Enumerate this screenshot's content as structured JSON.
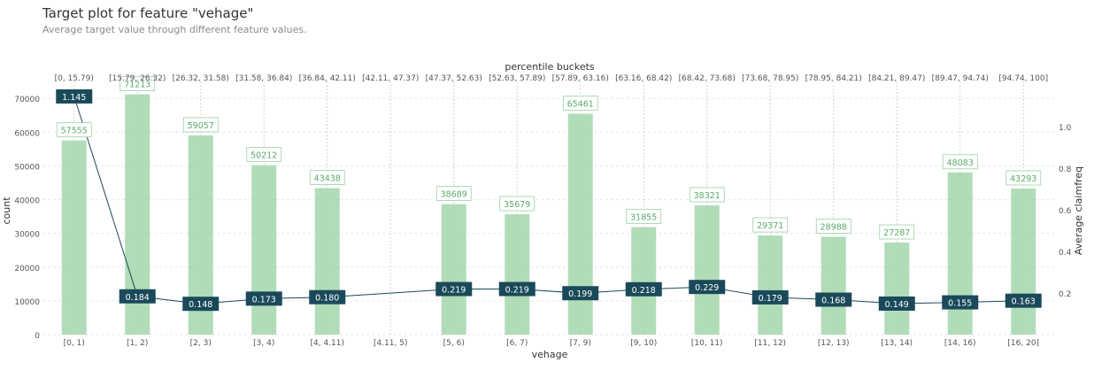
{
  "chart_data": {
    "type": "bar",
    "title": "Target plot for feature \"vehage\"",
    "subtitle": "Average target value through different feature values.",
    "xlabel": "vehage",
    "ylabel": "count",
    "y2label": "Average claimfreq",
    "top_axis_label": "percentile buckets",
    "categories": [
      "[0, 1)",
      "[1, 2)",
      "[2, 3)",
      "[3, 4)",
      "[4, 4.11)",
      "[4.11, 5)",
      "[5, 6)",
      "[6, 7)",
      "[7, 9)",
      "[9, 10)",
      "[10, 11)",
      "[11, 12)",
      "[12, 13)",
      "[13, 14)",
      "[14, 16)",
      "[16, 20]"
    ],
    "percentile_buckets": [
      "[0, 15.79)",
      "[15.79, 26.32)",
      "[26.32, 31.58)",
      "[31.58, 36.84)",
      "[36.84, 42.11)",
      "[42.11, 47.37)",
      "[47.37, 52.63)",
      "[52.63, 57.89)",
      "[57.89, 63.16)",
      "[63.16, 68.42)",
      "[68.42, 73.68)",
      "[73.68, 78.95)",
      "[78.95, 84.21)",
      "[84.21, 89.47)",
      "[89.47, 94.74)",
      "[94.74, 100]"
    ],
    "series": [
      {
        "type": "bar",
        "axis": "left",
        "color": "#a8d8b0",
        "label_color": "#5aaa6a",
        "values": [
          57555,
          71213,
          59057,
          50212,
          43438,
          null,
          38689,
          35679,
          65461,
          31855,
          38321,
          29371,
          28988,
          27287,
          48083,
          43293
        ],
        "labels": [
          "57555",
          "71213",
          "59057",
          "50212",
          "43438",
          "",
          "38689",
          "35679",
          "65461",
          "31855",
          "38321",
          "29371",
          "28988",
          "27287",
          "48083",
          "43293"
        ]
      },
      {
        "type": "line",
        "axis": "right",
        "color": "#1a4a5a",
        "values": [
          1.145,
          0.184,
          0.148,
          0.173,
          0.18,
          null,
          0.219,
          0.219,
          0.199,
          0.218,
          0.229,
          0.179,
          0.168,
          0.149,
          0.155,
          0.163
        ],
        "labels": [
          "1.145",
          "0.184",
          "0.148",
          "0.173",
          "0.180",
          "",
          "0.219",
          "0.219",
          "0.199",
          "0.218",
          "0.229",
          "0.179",
          "0.168",
          "0.149",
          "0.155",
          "0.163"
        ]
      }
    ],
    "ylim": [
      0,
      74000
    ],
    "y2lim": [
      0,
      1.2
    ],
    "yticks": [
      0,
      10000,
      20000,
      30000,
      40000,
      50000,
      60000,
      70000
    ],
    "yticklabels": [
      "0",
      "10000",
      "20000",
      "30000",
      "40000",
      "50000",
      "60000",
      "70000"
    ],
    "y2ticks": [
      0.2,
      0.4,
      0.6,
      0.8,
      1.0
    ],
    "y2ticklabels": [
      "0.2",
      "0.4",
      "0.6",
      "0.8",
      "1.0"
    ],
    "grid": true
  }
}
